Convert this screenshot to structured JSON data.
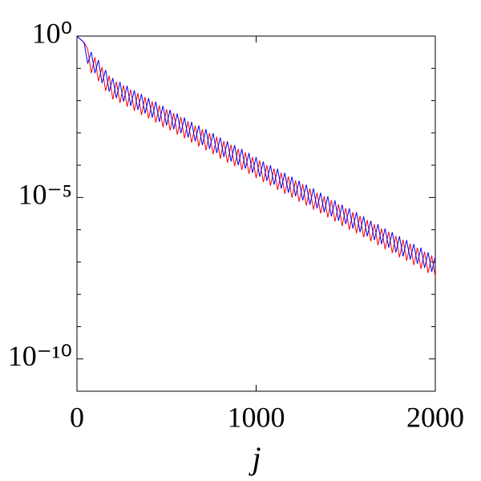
{
  "chart_data": {
    "type": "line",
    "xlabel": "j",
    "x": [
      0,
      20,
      40,
      60,
      80,
      100,
      120,
      140,
      160,
      180,
      200,
      220,
      240,
      260,
      280,
      300,
      320,
      340,
      360,
      380,
      400,
      420,
      440,
      460,
      480,
      500,
      520,
      540,
      560,
      580,
      600,
      620,
      640,
      660,
      680,
      700,
      720,
      740,
      760,
      780,
      800,
      820,
      840,
      860,
      880,
      900,
      920,
      940,
      960,
      980,
      1000,
      1020,
      1040,
      1060,
      1080,
      1100,
      1120,
      1140,
      1160,
      1180,
      1200,
      1220,
      1240,
      1260,
      1280,
      1300,
      1320,
      1340,
      1360,
      1380,
      1400,
      1420,
      1440,
      1460,
      1480,
      1500,
      1520,
      1540,
      1560,
      1580,
      1600,
      1620,
      1640,
      1660,
      1680,
      1700,
      1720,
      1740,
      1760,
      1780,
      1800,
      1820,
      1840,
      1860,
      1880,
      1900,
      1920,
      1940,
      1960,
      1980,
      2000
    ],
    "series": [
      {
        "color": "#ff0000",
        "values": [
          1,
          0.79,
          0.63,
          0.4,
          0.071,
          0.22,
          0.04,
          0.11,
          0.02,
          0.059,
          0.011,
          0.039,
          0.0085,
          0.03,
          0.0065,
          0.022,
          0.0048,
          0.017,
          0.0036,
          0.013,
          0.0028,
          0.0095,
          0.0021,
          0.0071,
          0.0015,
          0.0054,
          0.0012,
          0.0041,
          0.00089,
          0.0031,
          0.00068,
          0.0023,
          0.0005,
          0.0017,
          0.00038,
          0.0013,
          0.00029,
          0.001,
          0.00022,
          0.00076,
          0.00016,
          0.00056,
          0.00012,
          0.00043,
          9.3e-05,
          0.00032,
          7.1e-05,
          0.00025,
          5.4e-05,
          0.00018,
          4e-05,
          0.00014,
          3e-05,
          0.0001,
          2.3e-05,
          7.9e-05,
          1.7e-05,
          5.9e-05,
          1.3e-05,
          4.5e-05,
          9.8e-06,
          3.4e-05,
          7.4e-06,
          2.6e-05,
          5.6e-06,
          1.9e-05,
          4.2e-06,
          1.4e-05,
          3.2e-06,
          1.1e-05,
          2.4e-06,
          8.3e-06,
          1.8e-06,
          6.2e-06,
          1.3e-06,
          4.7e-06,
          1e-06,
          3.5e-06,
          7.8e-07,
          2.7e-06,
          5.9e-07,
          2e-06,
          4.4e-07,
          1.5e-06,
          3.3e-07,
          1.1e-06,
          2.5e-07,
          8.7e-07,
          1.9e-07,
          6.5e-07,
          1.4e-07,
          4.9e-07,
          1.1e-07,
          3.7e-07,
          8.1e-08,
          2.8e-07,
          6.2e-08,
          2.1e-07,
          4.6e-08,
          1.6e-07,
          3.5e-08
        ]
      },
      {
        "color": "#0000ff",
        "values": [
          1,
          0.79,
          0.63,
          0.14,
          0.32,
          0.071,
          0.18,
          0.035,
          0.089,
          0.019,
          0.05,
          0.012,
          0.038,
          0.0093,
          0.029,
          0.0069,
          0.021,
          0.0052,
          0.016,
          0.004,
          0.012,
          0.003,
          0.0093,
          0.0022,
          0.0069,
          0.0017,
          0.0052,
          0.0013,
          0.004,
          0.00098,
          0.003,
          0.00072,
          0.0022,
          0.00055,
          0.0017,
          0.00042,
          0.0013,
          0.00032,
          0.00098,
          0.00024,
          0.00072,
          0.00018,
          0.00055,
          0.00013,
          0.00042,
          0.0001,
          0.00032,
          7.8e-05,
          0.00024,
          5.8e-05,
          0.00018,
          4.4e-05,
          0.00013,
          3.3e-05,
          0.0001,
          2.5e-05,
          7.8e-05,
          1.9e-05,
          5.8e-05,
          1.4e-05,
          4.4e-05,
          1.1e-05,
          3.3e-05,
          8.1e-06,
          2.5e-05,
          6e-06,
          1.9e-05,
          4.6e-06,
          1.4e-05,
          3.5e-06,
          1.1e-05,
          2.6e-06,
          8.1e-06,
          1.9e-06,
          6e-06,
          1.5e-06,
          4.6e-06,
          1.1e-06,
          3.5e-06,
          8.5e-07,
          2.6e-06,
          6.3e-07,
          1.9e-06,
          4.8e-07,
          1.5e-06,
          3.6e-07,
          1.1e-06,
          2.8e-07,
          8.5e-07,
          2e-07,
          6.3e-07,
          1.5e-07,
          4.8e-07,
          1.2e-07,
          3.6e-07,
          8.9e-08,
          2.8e-07,
          6.6e-08,
          2e-07,
          5e-08,
          1.5e-07
        ]
      }
    ],
    "xlim": [
      0,
      2000
    ],
    "xticks": [
      0,
      1000,
      2000
    ],
    "ylim": [
      1e-11,
      1
    ],
    "yscale": "log",
    "yticks": [
      {
        "value": 1,
        "label": "10⁰"
      },
      {
        "value": 1e-05,
        "label": "10⁻⁵"
      },
      {
        "value": 1e-10,
        "label": "10⁻¹⁰"
      }
    ],
    "yminorticks": [
      0.1,
      0.01,
      0.001,
      0.0001,
      1e-06,
      1e-07,
      1e-08,
      1e-09,
      1e-11
    ]
  }
}
